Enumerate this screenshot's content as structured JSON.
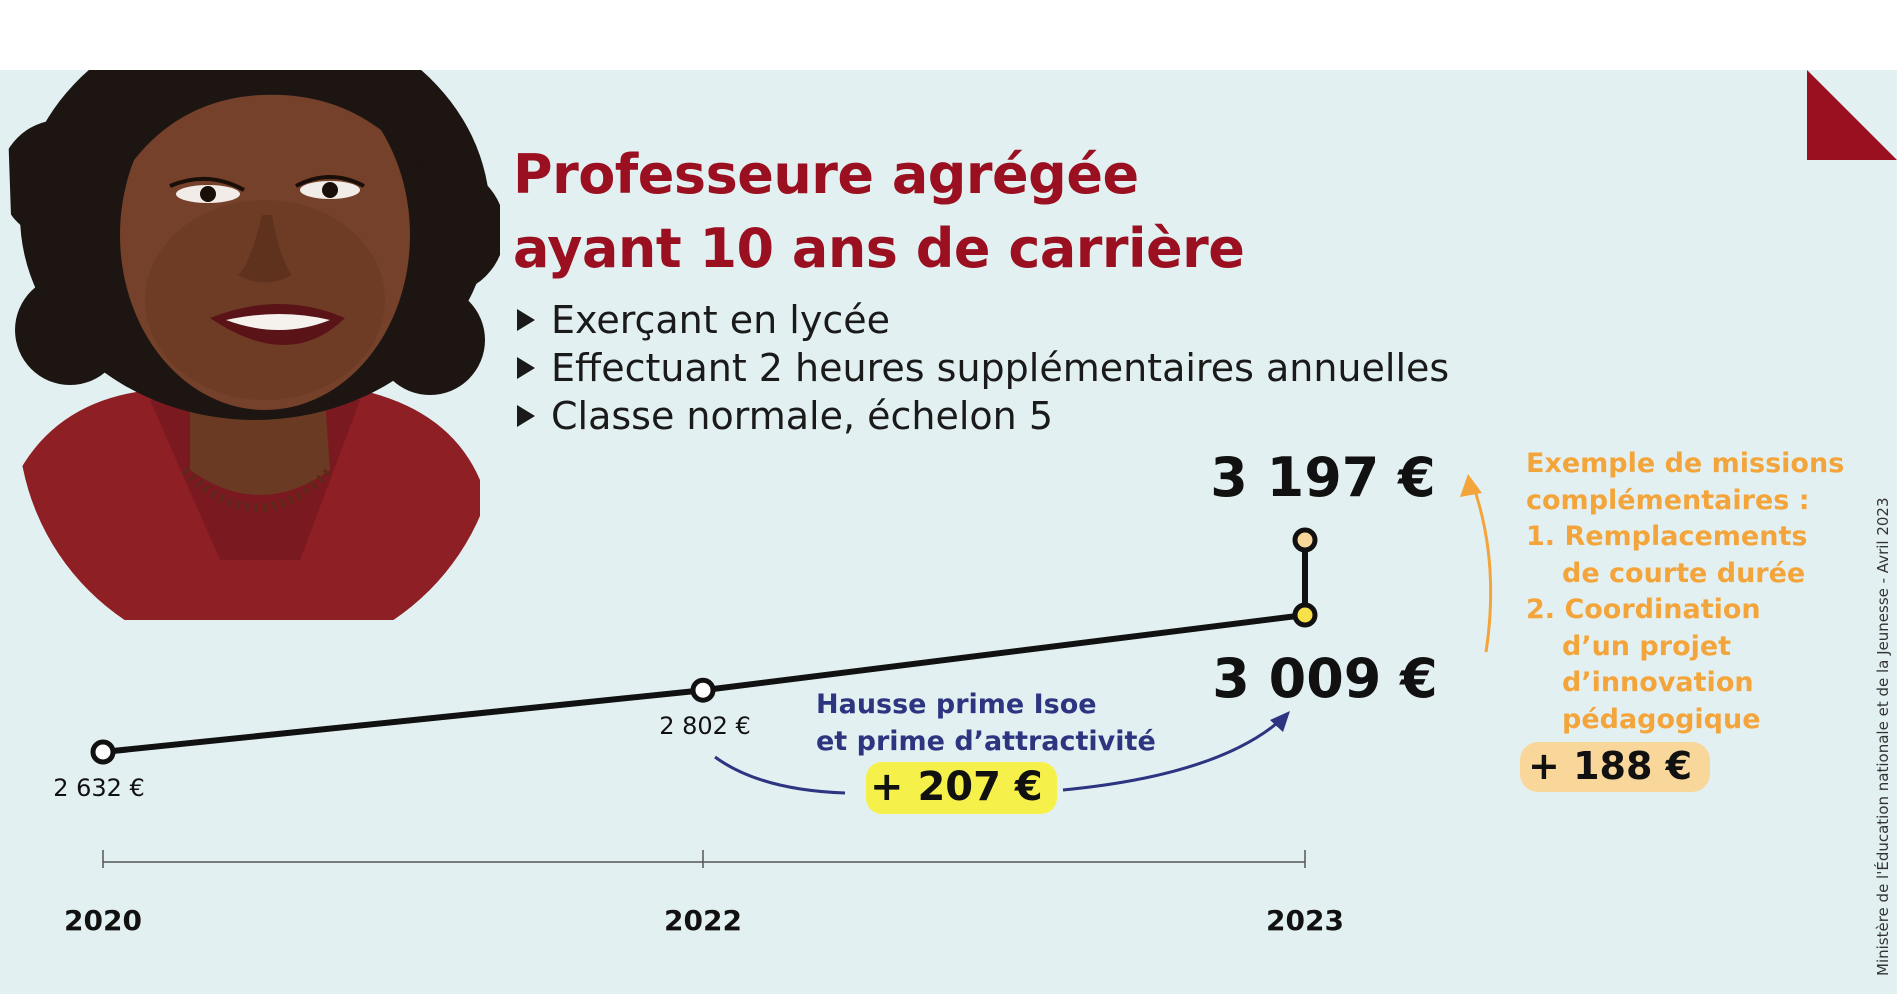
{
  "header": {
    "title_line1": "Professeure agrégée",
    "title_line2": "ayant 10 ans de carrière",
    "bullets": [
      "Exerçant en lycée",
      "Effectuant 2 heures supplémentaires annuelles",
      "Classe normale, échelon 5"
    ]
  },
  "annotations": {
    "hausse_line1": "Hausse prime Isoe",
    "hausse_line2": "et prime d’attractivité",
    "hausse_value": "+ 207 €",
    "missions_title1": "Exemple de missions",
    "missions_title2": "complémentaires :",
    "mission1_line1": "1. Remplacements",
    "mission1_line2": "de courte durée",
    "mission2_line1": "2. Coordination",
    "mission2_line2": "d’un projet",
    "mission2_line3": "d’innovation",
    "mission2_line4": "pédagogique",
    "missions_value": "+ 188 €"
  },
  "credit": "Ministère de l'Éducation nationale et de la Jeunesse - Avril 2023",
  "colors": {
    "accent_red": "#9a1020",
    "background": "#e3f0f1",
    "orange": "#f3a53c",
    "navy": "#2d3480",
    "highlight_yellow": "#f6f14a",
    "marker_yellow": "#f7e04a"
  },
  "portrait": "illustrated-teacher-portrait",
  "chart_data": {
    "type": "line",
    "x": [
      "2020",
      "2022",
      "2023"
    ],
    "points": [
      {
        "x": "2020",
        "value": 2632,
        "label": "2 632 €"
      },
      {
        "x": "2022",
        "value": 2802,
        "label": "2 802 €"
      },
      {
        "x": "2023",
        "value": 3009,
        "label": "3 009 €"
      },
      {
        "x": "2023",
        "value": 3197,
        "label": "3 197 €"
      }
    ],
    "unit": "€"
  }
}
